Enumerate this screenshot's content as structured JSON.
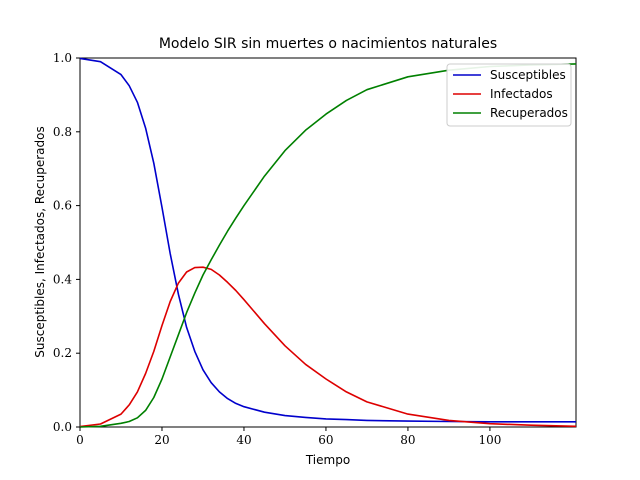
{
  "chart_data": {
    "type": "line",
    "title": "Modelo SIR sin muertes o nacimientos naturales",
    "xlabel": "Tiempo",
    "ylabel": "Susceptibles, Infectados, Recuperados",
    "xlim": [
      0,
      121
    ],
    "ylim": [
      0,
      1.0
    ],
    "x_ticks": [
      0,
      20,
      40,
      60,
      80,
      100
    ],
    "x_tick_labels": [
      "0",
      "20",
      "40",
      "60",
      "80",
      "100"
    ],
    "y_ticks": [
      0.0,
      0.2,
      0.4,
      0.6,
      0.8,
      1.0
    ],
    "y_tick_labels": [
      "0.0",
      "0.2",
      "0.4",
      "0.6",
      "0.8",
      "1.0"
    ],
    "grid": false,
    "legend_position": "top-right",
    "x": [
      0,
      5,
      10,
      12,
      14,
      16,
      18,
      20,
      22,
      24,
      26,
      28,
      30,
      32,
      34,
      36,
      38,
      40,
      45,
      50,
      55,
      60,
      65,
      70,
      80,
      90,
      100,
      110,
      121
    ],
    "series": [
      {
        "name": "Susceptibles",
        "color": "#0000cc",
        "values": [
          0.999,
          0.99,
          0.955,
          0.925,
          0.88,
          0.81,
          0.715,
          0.595,
          0.47,
          0.36,
          0.27,
          0.205,
          0.155,
          0.12,
          0.095,
          0.077,
          0.064,
          0.055,
          0.04,
          0.031,
          0.026,
          0.022,
          0.02,
          0.018,
          0.016,
          0.015,
          0.014,
          0.014,
          0.014
        ]
      },
      {
        "name": "Infectados",
        "color": "#dd0000",
        "values": [
          0.001,
          0.008,
          0.035,
          0.06,
          0.095,
          0.145,
          0.205,
          0.275,
          0.34,
          0.39,
          0.42,
          0.432,
          0.433,
          0.427,
          0.412,
          0.392,
          0.37,
          0.345,
          0.28,
          0.22,
          0.17,
          0.13,
          0.095,
          0.068,
          0.035,
          0.018,
          0.009,
          0.005,
          0.002
        ]
      },
      {
        "name": "Recuperados",
        "color": "#008000",
        "values": [
          0.0,
          0.002,
          0.01,
          0.015,
          0.025,
          0.045,
          0.08,
          0.13,
          0.19,
          0.25,
          0.31,
          0.363,
          0.412,
          0.453,
          0.493,
          0.531,
          0.566,
          0.6,
          0.68,
          0.749,
          0.804,
          0.848,
          0.885,
          0.914,
          0.949,
          0.967,
          0.977,
          0.981,
          0.984
        ]
      }
    ]
  }
}
